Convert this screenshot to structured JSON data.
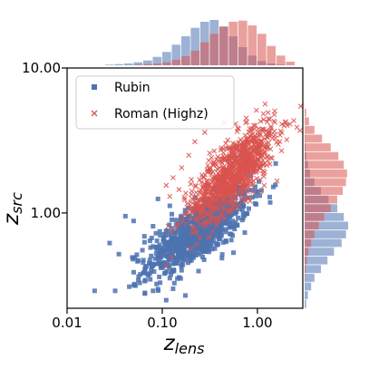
{
  "chart_data": {
    "type": "scatter",
    "title": "",
    "xlabel_main": "z",
    "xlabel_sub": "lens",
    "ylabel_main": "z",
    "ylabel_sub": "src",
    "x_scale": "log",
    "y_scale": "log",
    "xlim": [
      0.01,
      3.0
    ],
    "ylim": [
      0.22,
      10.0
    ],
    "x_ticks": [
      0.01,
      0.1,
      1.0
    ],
    "x_tick_labels": [
      "0.01",
      "0.10",
      "1.00"
    ],
    "y_ticks": [
      1.0,
      10.0
    ],
    "y_tick_labels": [
      "1.00",
      "10.00"
    ],
    "grid": false,
    "legend_position": "upper-left",
    "series": [
      {
        "name": "Rubin",
        "marker": "square",
        "color": "#4c72b0",
        "center_log_x": -0.62,
        "center_log_y": -0.13,
        "spread_log_x": 0.27,
        "spread_log_y": 0.15,
        "count": 900,
        "outlier_points": [
          [
            0.032,
            0.29
          ],
          [
            0.045,
            0.31
          ],
          [
            0.035,
            0.52
          ],
          [
            0.028,
            0.62
          ],
          [
            0.041,
            0.95
          ],
          [
            0.056,
            0.47
          ],
          [
            0.07,
            0.38
          ],
          [
            0.08,
            0.81
          ],
          [
            0.09,
            1.25
          ],
          [
            0.11,
            0.25
          ],
          [
            0.13,
            0.3
          ],
          [
            0.065,
            0.69
          ],
          [
            0.05,
            0.88
          ],
          [
            0.095,
            0.33
          ],
          [
            0.12,
            1.12
          ]
        ]
      },
      {
        "name": "Roman (Highz)",
        "marker": "x",
        "color": "#d9534f",
        "center_log_x": -0.25,
        "center_log_y": 0.28,
        "spread_log_x": 0.22,
        "spread_log_y": 0.17,
        "count": 1000,
        "outlier_points": [
          [
            0.13,
            1.75
          ],
          [
            0.16,
            2.05
          ],
          [
            0.19,
            2.5
          ],
          [
            0.22,
            3.1
          ],
          [
            0.28,
            3.6
          ],
          [
            0.12,
            1.3
          ],
          [
            0.24,
            1.05
          ],
          [
            0.15,
            1.45
          ],
          [
            0.34,
            0.75
          ],
          [
            2.6,
            3.9
          ],
          [
            2.2,
            4.1
          ],
          [
            2.8,
            3.7
          ],
          [
            0.11,
            1.55
          ],
          [
            0.45,
            4.2
          ],
          [
            1.9,
            4.0
          ]
        ]
      }
    ],
    "marginal_x": {
      "bins_log": [
        -1.6,
        -1.5,
        -1.4,
        -1.3,
        -1.2,
        -1.1,
        -1.0,
        -0.9,
        -0.8,
        -0.7,
        -0.6,
        -0.5,
        -0.4,
        -0.3,
        -0.2,
        -0.1,
        0.0,
        0.1,
        0.2,
        0.3,
        0.4
      ],
      "rubin_counts": [
        1,
        2,
        3,
        5,
        8,
        14,
        22,
        34,
        48,
        62,
        72,
        75,
        64,
        48,
        30,
        16,
        7,
        3,
        1,
        0
      ],
      "roman_counts": [
        0,
        0,
        0,
        1,
        2,
        3,
        5,
        9,
        15,
        24,
        38,
        52,
        64,
        72,
        74,
        66,
        52,
        32,
        16,
        6
      ]
    },
    "marginal_y": {
      "bins_log": [
        -0.66,
        -0.6,
        -0.54,
        -0.48,
        -0.42,
        -0.36,
        -0.3,
        -0.24,
        -0.18,
        -0.12,
        -0.06,
        0.0,
        0.06,
        0.12,
        0.18,
        0.24,
        0.3,
        0.36,
        0.42,
        0.48,
        0.54,
        0.6,
        0.66,
        0.72
      ],
      "rubin_counts": [
        3,
        6,
        12,
        18,
        30,
        42,
        54,
        68,
        76,
        80,
        72,
        60,
        44,
        30,
        18,
        10,
        6,
        3,
        2,
        1,
        0,
        0,
        0
      ],
      "roman_counts": [
        0,
        0,
        0,
        1,
        2,
        4,
        7,
        12,
        18,
        26,
        36,
        48,
        60,
        70,
        76,
        78,
        72,
        62,
        48,
        32,
        18,
        8,
        3
      ]
    }
  }
}
